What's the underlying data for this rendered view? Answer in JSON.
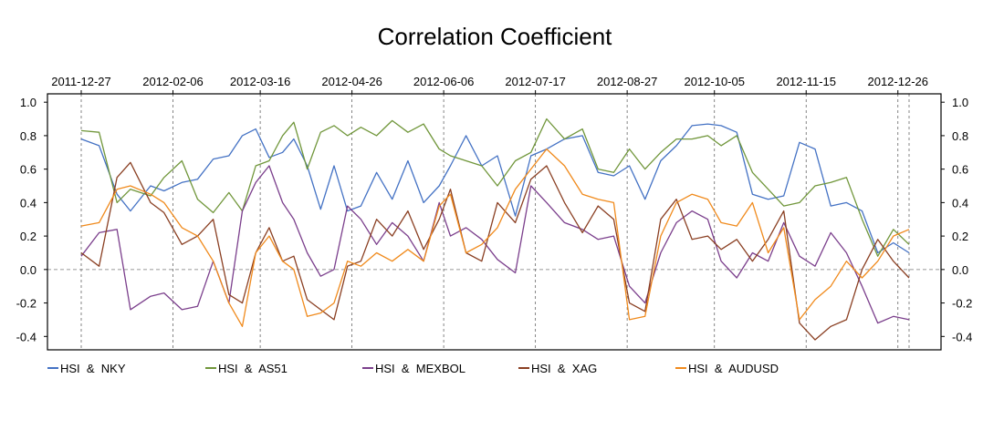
{
  "chart_data": {
    "type": "line",
    "title": "Correlation Coefficient",
    "xlabel": "",
    "ylabel": "",
    "ylim": [
      -0.48,
      1.05
    ],
    "x_start": "2011-12-27",
    "x_end": "2012-12-31",
    "x_ticks": [
      "2011-12-27",
      "2012-02-06",
      "2012-03-16",
      "2012-04-26",
      "2012-06-06",
      "2012-07-17",
      "2012-08-27",
      "2012-10-05",
      "2012-11-15",
      "2012-12-26"
    ],
    "y_ticks": [
      "1.0",
      "0.8",
      "0.6",
      "0.4",
      "0.2",
      "0.0",
      "-0.2",
      "-0.4"
    ],
    "hline": 0.0,
    "grid": "vertical dashed at x ticks",
    "legend_position": "bottom",
    "series": [
      {
        "name": "HSI  &  NKY",
        "color": "#4472C4",
        "x": [
          "2011-12-27",
          "2012-01-04",
          "2012-01-12",
          "2012-01-18",
          "2012-01-27",
          "2012-02-02",
          "2012-02-10",
          "2012-02-17",
          "2012-02-24",
          "2012-03-02",
          "2012-03-08",
          "2012-03-14",
          "2012-03-20",
          "2012-03-26",
          "2012-03-31",
          "2012-04-06",
          "2012-04-12",
          "2012-04-18",
          "2012-04-24",
          "2012-04-30",
          "2012-05-07",
          "2012-05-14",
          "2012-05-21",
          "2012-05-28",
          "2012-06-04",
          "2012-06-09",
          "2012-06-16",
          "2012-06-23",
          "2012-06-30",
          "2012-07-08",
          "2012-07-15",
          "2012-07-22",
          "2012-07-30",
          "2012-08-07",
          "2012-08-14",
          "2012-08-21",
          "2012-08-28",
          "2012-09-04",
          "2012-09-11",
          "2012-09-18",
          "2012-09-25",
          "2012-10-02",
          "2012-10-08",
          "2012-10-15",
          "2012-10-22",
          "2012-10-29",
          "2012-11-05",
          "2012-11-12",
          "2012-11-19",
          "2012-11-26",
          "2012-12-03",
          "2012-12-10",
          "2012-12-17",
          "2012-12-24",
          "2012-12-31"
        ],
        "values": [
          0.78,
          0.74,
          0.45,
          0.35,
          0.5,
          0.47,
          0.52,
          0.54,
          0.66,
          0.68,
          0.8,
          0.84,
          0.67,
          0.7,
          0.78,
          0.62,
          0.36,
          0.62,
          0.35,
          0.38,
          0.58,
          0.42,
          0.65,
          0.4,
          0.5,
          0.62,
          0.8,
          0.62,
          0.68,
          0.32,
          0.68,
          0.72,
          0.78,
          0.8,
          0.58,
          0.56,
          0.62,
          0.42,
          0.65,
          0.74,
          0.86,
          0.87,
          0.86,
          0.82,
          0.45,
          0.42,
          0.44,
          0.76,
          0.72,
          0.38,
          0.4,
          0.35,
          0.1,
          0.16,
          0.1
        ]
      },
      {
        "name": "HSI  &  AS51",
        "color": "#70963A",
        "x": [
          "2011-12-27",
          "2012-01-04",
          "2012-01-12",
          "2012-01-18",
          "2012-01-27",
          "2012-02-02",
          "2012-02-10",
          "2012-02-17",
          "2012-02-24",
          "2012-03-02",
          "2012-03-08",
          "2012-03-14",
          "2012-03-20",
          "2012-03-26",
          "2012-03-31",
          "2012-04-06",
          "2012-04-12",
          "2012-04-18",
          "2012-04-24",
          "2012-04-30",
          "2012-05-07",
          "2012-05-14",
          "2012-05-21",
          "2012-05-28",
          "2012-06-04",
          "2012-06-09",
          "2012-06-16",
          "2012-06-23",
          "2012-06-30",
          "2012-07-08",
          "2012-07-15",
          "2012-07-22",
          "2012-07-30",
          "2012-08-07",
          "2012-08-14",
          "2012-08-21",
          "2012-08-28",
          "2012-09-04",
          "2012-09-11",
          "2012-09-18",
          "2012-09-25",
          "2012-10-02",
          "2012-10-08",
          "2012-10-15",
          "2012-10-22",
          "2012-10-29",
          "2012-11-05",
          "2012-11-12",
          "2012-11-19",
          "2012-11-26",
          "2012-12-03",
          "2012-12-10",
          "2012-12-17",
          "2012-12-24",
          "2012-12-31"
        ],
        "values": [
          0.83,
          0.82,
          0.4,
          0.48,
          0.44,
          0.55,
          0.65,
          0.42,
          0.34,
          0.46,
          0.35,
          0.62,
          0.65,
          0.8,
          0.88,
          0.6,
          0.82,
          0.86,
          0.8,
          0.85,
          0.8,
          0.89,
          0.82,
          0.87,
          0.72,
          0.68,
          0.65,
          0.62,
          0.5,
          0.65,
          0.7,
          0.9,
          0.78,
          0.84,
          0.6,
          0.58,
          0.72,
          0.6,
          0.7,
          0.78,
          0.78,
          0.8,
          0.74,
          0.8,
          0.58,
          0.48,
          0.38,
          0.4,
          0.5,
          0.52,
          0.55,
          0.3,
          0.08,
          0.24,
          0.15
        ]
      },
      {
        "name": "HSI  &  MEXBOL",
        "color": "#7B3F8C",
        "x": [
          "2011-12-27",
          "2012-01-04",
          "2012-01-12",
          "2012-01-18",
          "2012-01-27",
          "2012-02-02",
          "2012-02-10",
          "2012-02-17",
          "2012-02-24",
          "2012-03-02",
          "2012-03-08",
          "2012-03-14",
          "2012-03-20",
          "2012-03-26",
          "2012-03-31",
          "2012-04-06",
          "2012-04-12",
          "2012-04-18",
          "2012-04-24",
          "2012-04-30",
          "2012-05-07",
          "2012-05-14",
          "2012-05-21",
          "2012-05-28",
          "2012-06-04",
          "2012-06-09",
          "2012-06-16",
          "2012-06-23",
          "2012-06-30",
          "2012-07-08",
          "2012-07-15",
          "2012-07-22",
          "2012-07-30",
          "2012-08-07",
          "2012-08-14",
          "2012-08-21",
          "2012-08-28",
          "2012-09-04",
          "2012-09-11",
          "2012-09-18",
          "2012-09-25",
          "2012-10-02",
          "2012-10-08",
          "2012-10-15",
          "2012-10-22",
          "2012-10-29",
          "2012-11-05",
          "2012-11-12",
          "2012-11-19",
          "2012-11-26",
          "2012-12-03",
          "2012-12-10",
          "2012-12-17",
          "2012-12-24",
          "2012-12-31"
        ],
        "values": [
          0.08,
          0.22,
          0.24,
          -0.24,
          -0.16,
          -0.14,
          -0.24,
          -0.22,
          0.05,
          -0.2,
          0.35,
          0.52,
          0.62,
          0.4,
          0.3,
          0.1,
          -0.04,
          0.0,
          0.38,
          0.3,
          0.15,
          0.28,
          0.2,
          0.05,
          0.4,
          0.2,
          0.25,
          0.18,
          0.06,
          -0.02,
          0.5,
          0.4,
          0.28,
          0.24,
          0.18,
          0.2,
          -0.1,
          -0.2,
          0.1,
          0.28,
          0.35,
          0.3,
          0.05,
          -0.05,
          0.1,
          0.05,
          0.28,
          0.08,
          0.02,
          0.22,
          0.1,
          -0.1,
          -0.32,
          -0.28,
          -0.3
        ]
      },
      {
        "name": "HSI  &  XAG",
        "color": "#8A3F22",
        "x": [
          "2011-12-27",
          "2012-01-04",
          "2012-01-12",
          "2012-01-18",
          "2012-01-27",
          "2012-02-02",
          "2012-02-10",
          "2012-02-17",
          "2012-02-24",
          "2012-03-02",
          "2012-03-08",
          "2012-03-14",
          "2012-03-20",
          "2012-03-26",
          "2012-03-31",
          "2012-04-06",
          "2012-04-12",
          "2012-04-18",
          "2012-04-24",
          "2012-04-30",
          "2012-05-07",
          "2012-05-14",
          "2012-05-21",
          "2012-05-28",
          "2012-06-04",
          "2012-06-09",
          "2012-06-16",
          "2012-06-23",
          "2012-06-30",
          "2012-07-08",
          "2012-07-15",
          "2012-07-22",
          "2012-07-30",
          "2012-08-07",
          "2012-08-14",
          "2012-08-21",
          "2012-08-28",
          "2012-09-04",
          "2012-09-11",
          "2012-09-18",
          "2012-09-25",
          "2012-10-02",
          "2012-10-08",
          "2012-10-15",
          "2012-10-22",
          "2012-10-29",
          "2012-11-05",
          "2012-11-12",
          "2012-11-19",
          "2012-11-26",
          "2012-12-03",
          "2012-12-10",
          "2012-12-17",
          "2012-12-24",
          "2012-12-31"
        ],
        "values": [
          0.1,
          0.02,
          0.55,
          0.64,
          0.4,
          0.34,
          0.15,
          0.2,
          0.3,
          -0.15,
          -0.2,
          0.1,
          0.25,
          0.05,
          0.08,
          -0.18,
          -0.24,
          -0.3,
          0.02,
          0.05,
          0.3,
          0.2,
          0.35,
          0.12,
          0.3,
          0.48,
          0.1,
          0.05,
          0.4,
          0.28,
          0.54,
          0.62,
          0.4,
          0.22,
          0.38,
          0.3,
          -0.2,
          -0.25,
          0.3,
          0.42,
          0.18,
          0.2,
          0.12,
          0.18,
          0.05,
          0.18,
          0.35,
          -0.32,
          -0.42,
          -0.34,
          -0.3,
          0.0,
          0.18,
          0.05,
          -0.05
        ]
      },
      {
        "name": "HSI  &  AUDUSD",
        "color": "#F08A1C",
        "x": [
          "2011-12-27",
          "2012-01-04",
          "2012-01-12",
          "2012-01-18",
          "2012-01-27",
          "2012-02-02",
          "2012-02-10",
          "2012-02-17",
          "2012-02-24",
          "2012-03-02",
          "2012-03-08",
          "2012-03-14",
          "2012-03-20",
          "2012-03-26",
          "2012-03-31",
          "2012-04-06",
          "2012-04-12",
          "2012-04-18",
          "2012-04-24",
          "2012-04-30",
          "2012-05-07",
          "2012-05-14",
          "2012-05-21",
          "2012-05-28",
          "2012-06-04",
          "2012-06-09",
          "2012-06-16",
          "2012-06-23",
          "2012-06-30",
          "2012-07-08",
          "2012-07-15",
          "2012-07-22",
          "2012-07-30",
          "2012-08-07",
          "2012-08-14",
          "2012-08-21",
          "2012-08-28",
          "2012-09-04",
          "2012-09-11",
          "2012-09-18",
          "2012-09-25",
          "2012-10-02",
          "2012-10-08",
          "2012-10-15",
          "2012-10-22",
          "2012-10-29",
          "2012-11-05",
          "2012-11-12",
          "2012-11-19",
          "2012-11-26",
          "2012-12-03",
          "2012-12-10",
          "2012-12-17",
          "2012-12-24",
          "2012-12-31"
        ],
        "values": [
          0.26,
          0.28,
          0.48,
          0.5,
          0.45,
          0.4,
          0.25,
          0.2,
          0.05,
          -0.2,
          -0.34,
          0.1,
          0.2,
          0.05,
          0.0,
          -0.28,
          -0.26,
          -0.2,
          0.05,
          0.02,
          0.1,
          0.05,
          0.12,
          0.05,
          0.38,
          0.45,
          0.1,
          0.15,
          0.25,
          0.48,
          0.6,
          0.72,
          0.62,
          0.45,
          0.42,
          0.4,
          -0.3,
          -0.28,
          0.2,
          0.4,
          0.45,
          0.42,
          0.28,
          0.26,
          0.4,
          0.1,
          0.25,
          -0.3,
          -0.18,
          -0.1,
          0.05,
          -0.05,
          0.05,
          0.2,
          0.24
        ]
      }
    ]
  }
}
